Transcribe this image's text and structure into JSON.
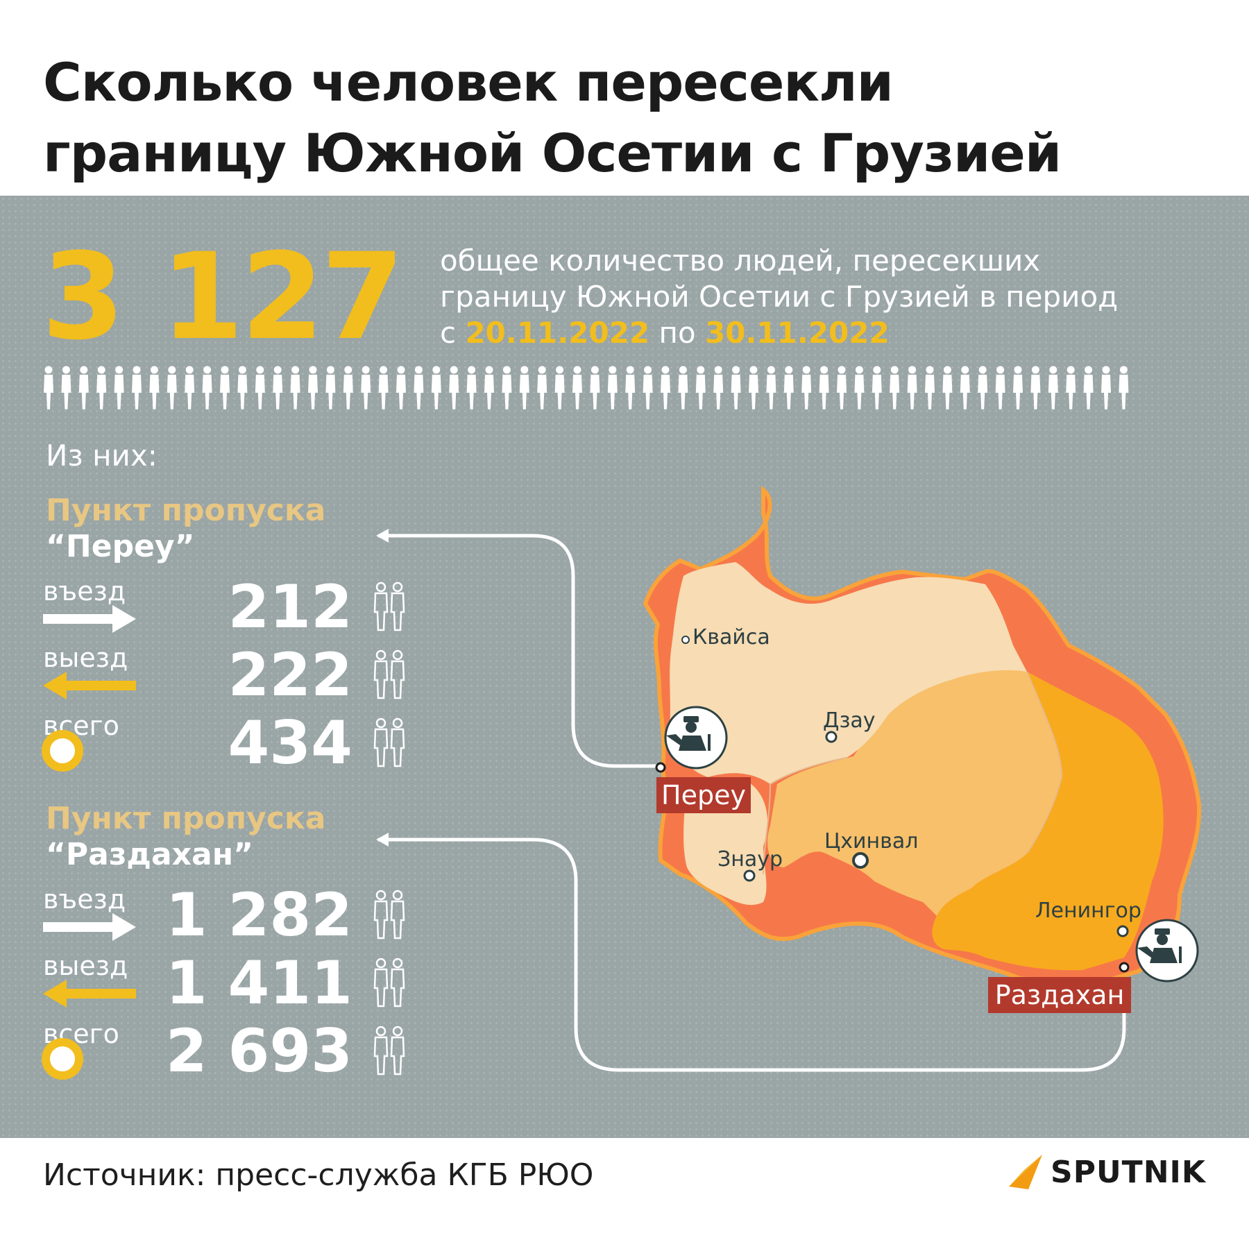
{
  "title_line1": "Сколько человек пересекли",
  "title_line2": "границу Южной Осетии с Грузией",
  "total": "3 127",
  "description": {
    "line1": "общее количество людей, пересекших",
    "line2": "границу Южной Осетии с Грузией в период",
    "prefix": "с",
    "date_from": "20.11.2022",
    "middle": "по",
    "date_to": "30.11.2022"
  },
  "of_them": "Из них:",
  "checkpoints": [
    {
      "title": "Пункт пропуска",
      "name": "“Переу”",
      "entry_label": "въезд",
      "entry": "212",
      "exit_label": "выезд",
      "exit": "222",
      "total_label": "всего",
      "total": "434",
      "map_label": "Переу"
    },
    {
      "title": "Пункт пропуска",
      "name": "“Раздахан”",
      "entry_label": "въезд",
      "entry": "1 282",
      "exit_label": "выезд",
      "exit": "1 411",
      "total_label": "всего",
      "total": "2 693",
      "map_label": "Раздахан"
    }
  ],
  "map": {
    "towns": [
      "Квайса",
      "Дзау",
      "Знаур",
      "Цхинвал",
      "Ленингор"
    ]
  },
  "source": "Источник: пресс-служба КГБ РЮО",
  "brand": "SPUTNIK",
  "colors": {
    "accent": "#f2be1d",
    "background": "#9aa5a6",
    "label_box": "#b23a2d",
    "region_light": "#f7dcb4",
    "region_mid": "#f8c06a",
    "region_orange": "#f8aa1e",
    "border_zone": "#f6784a"
  },
  "icons": [
    "person-icon",
    "border-guard-icon",
    "sputnik-logo-icon"
  ]
}
